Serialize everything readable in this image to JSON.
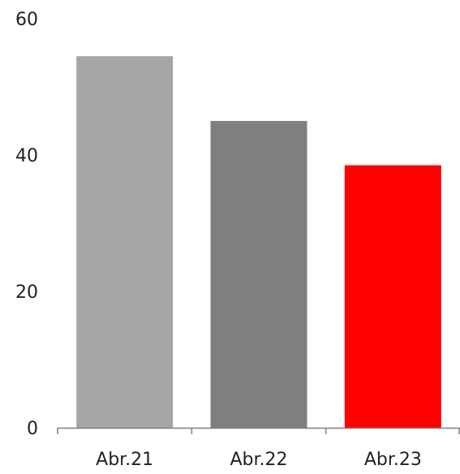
{
  "chart_data": {
    "type": "bar",
    "title": "",
    "xlabel": "",
    "ylabel": "",
    "categories": [
      "Abr.21",
      "Abr.22",
      "Abr.23"
    ],
    "values": [
      54.5,
      45,
      38.5
    ],
    "bar_colors": [
      "#a6a6a6",
      "#7f7f7f",
      "#ff0000"
    ],
    "ylim": [
      0,
      60
    ],
    "yticks": [
      0,
      20,
      40,
      60
    ],
    "ytick_labels": [
      "0",
      "20",
      "40",
      "60"
    ],
    "grid": false,
    "legend": "none"
  }
}
